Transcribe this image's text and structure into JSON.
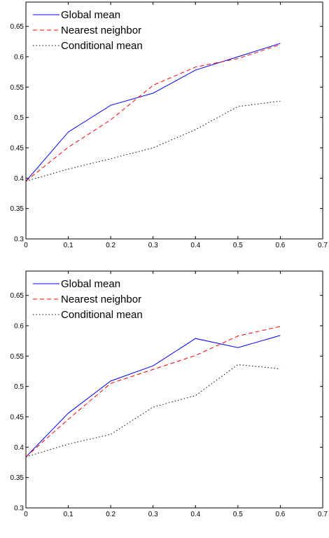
{
  "chart_data": [
    {
      "type": "line",
      "x": [
        0,
        0.1,
        0.2,
        0.3,
        0.4,
        0.5,
        0.6
      ],
      "xlim": [
        0,
        0.7
      ],
      "ylim": [
        0.3,
        0.69
      ],
      "xticks": [
        "0",
        "0.1",
        "0.2",
        "0.3",
        "0.4",
        "0.5",
        "0.6",
        "0.7"
      ],
      "yticks": [
        "0.3",
        "0.35",
        "0.4",
        "0.45",
        "0.5",
        "0.55",
        "0.6",
        "0.65"
      ],
      "legend_position": "top-left",
      "grid": false,
      "series": [
        {
          "name": "Global mean",
          "color": "#0000ff",
          "style": "solid",
          "values": [
            0.395,
            0.476,
            0.52,
            0.54,
            0.578,
            0.6,
            0.622
          ]
        },
        {
          "name": "Nearest neighbor",
          "color": "#ff0000",
          "style": "dashed",
          "values": [
            0.395,
            0.451,
            0.496,
            0.553,
            0.583,
            0.597,
            0.62
          ]
        },
        {
          "name": "Conditional mean",
          "color": "#000000",
          "style": "dotted",
          "values": [
            0.395,
            0.415,
            0.432,
            0.45,
            0.48,
            0.518,
            0.527
          ]
        }
      ]
    },
    {
      "type": "line",
      "x": [
        0,
        0.1,
        0.2,
        0.3,
        0.4,
        0.5,
        0.6
      ],
      "xlim": [
        0,
        0.7
      ],
      "ylim": [
        0.3,
        0.69
      ],
      "xticks": [
        "0",
        "0.1",
        "0.2",
        "0.3",
        "0.4",
        "0.5",
        "0.6",
        "0.7"
      ],
      "yticks": [
        "0.3",
        "0.35",
        "0.4",
        "0.45",
        "0.5",
        "0.55",
        "0.6",
        "0.65"
      ],
      "legend_position": "top-left",
      "grid": false,
      "series": [
        {
          "name": "Global mean",
          "color": "#0000ff",
          "style": "solid",
          "values": [
            0.384,
            0.456,
            0.509,
            0.534,
            0.579,
            0.564,
            0.584
          ]
        },
        {
          "name": "Nearest neighbor",
          "color": "#ff0000",
          "style": "dashed",
          "values": [
            0.384,
            0.446,
            0.505,
            0.528,
            0.551,
            0.583,
            0.599
          ]
        },
        {
          "name": "Conditional mean",
          "color": "#000000",
          "style": "dotted",
          "values": [
            0.384,
            0.405,
            0.421,
            0.466,
            0.485,
            0.536,
            0.529
          ]
        }
      ]
    }
  ]
}
